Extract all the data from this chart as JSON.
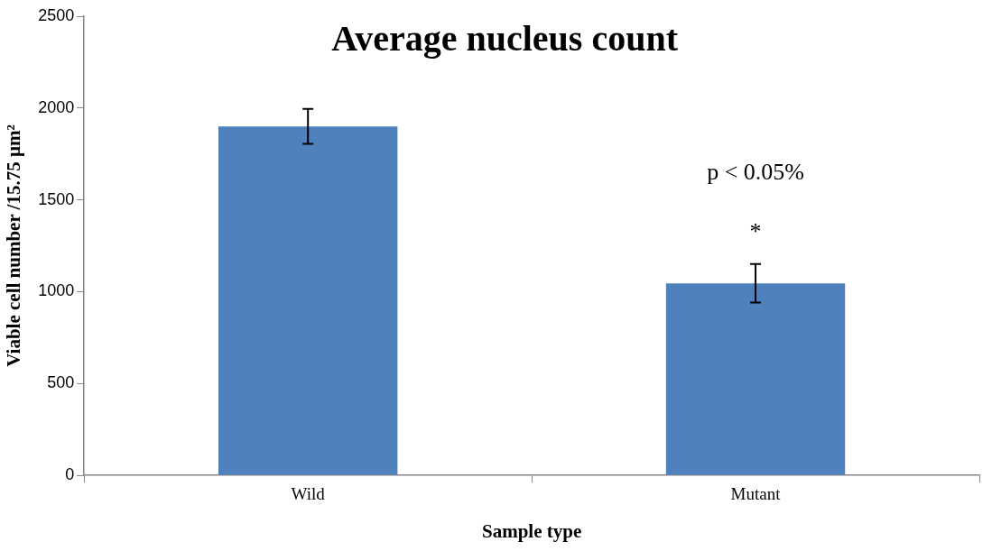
{
  "chart_data": {
    "type": "bar",
    "title": "Average nucleus count",
    "xlabel": "Sample type",
    "ylabel": "Viable cell number /15.75 µm²",
    "categories": [
      "Wild",
      "Mutant"
    ],
    "values": [
      1900,
      1045
    ],
    "errors": [
      95,
      105
    ],
    "color": "#4f81bd",
    "ylim": [
      0,
      2500
    ],
    "yticks": [
      0,
      500,
      1000,
      1500,
      2000,
      2500
    ],
    "grid": false,
    "legend": false,
    "annotations": [
      "p < 0.05%",
      "*"
    ]
  }
}
